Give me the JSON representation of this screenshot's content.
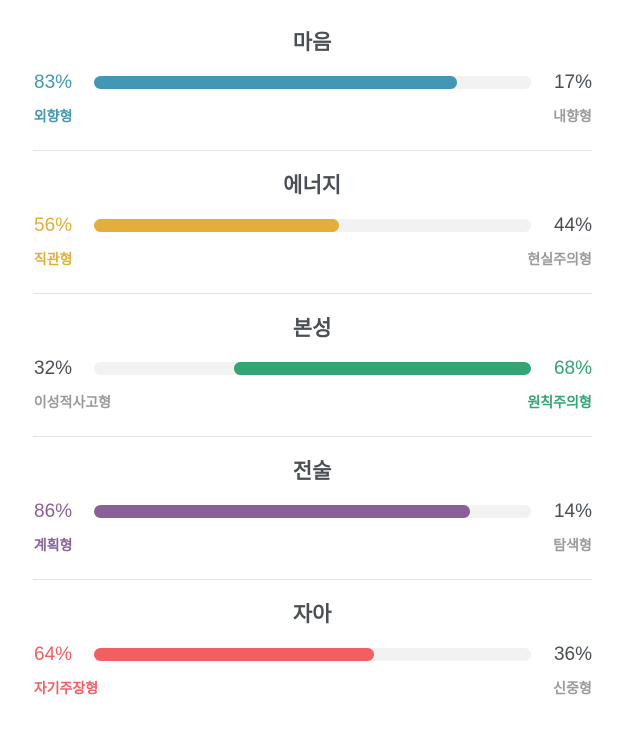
{
  "traits": [
    {
      "title": "마음",
      "left_pct": "83%",
      "right_pct": "17%",
      "left_label": "외향형",
      "right_label": "내향형",
      "value": 83,
      "dominant": "left",
      "color": "#4298b4"
    },
    {
      "title": "에너지",
      "left_pct": "56%",
      "right_pct": "44%",
      "left_label": "직관형",
      "right_label": "현실주의형",
      "value": 56,
      "dominant": "left",
      "color": "#e4ae3a"
    },
    {
      "title": "본성",
      "left_pct": "32%",
      "right_pct": "68%",
      "left_label": "이성적사고형",
      "right_label": "원칙주의형",
      "value": 68,
      "dominant": "right",
      "color": "#33a474"
    },
    {
      "title": "전술",
      "left_pct": "86%",
      "right_pct": "14%",
      "left_label": "계획형",
      "right_label": "탐색형",
      "value": 86,
      "dominant": "left",
      "color": "#88619a"
    },
    {
      "title": "자아",
      "left_pct": "64%",
      "right_pct": "36%",
      "left_label": "자기주장형",
      "right_label": "신중형",
      "value": 64,
      "dominant": "left",
      "color": "#f25e62"
    }
  ]
}
